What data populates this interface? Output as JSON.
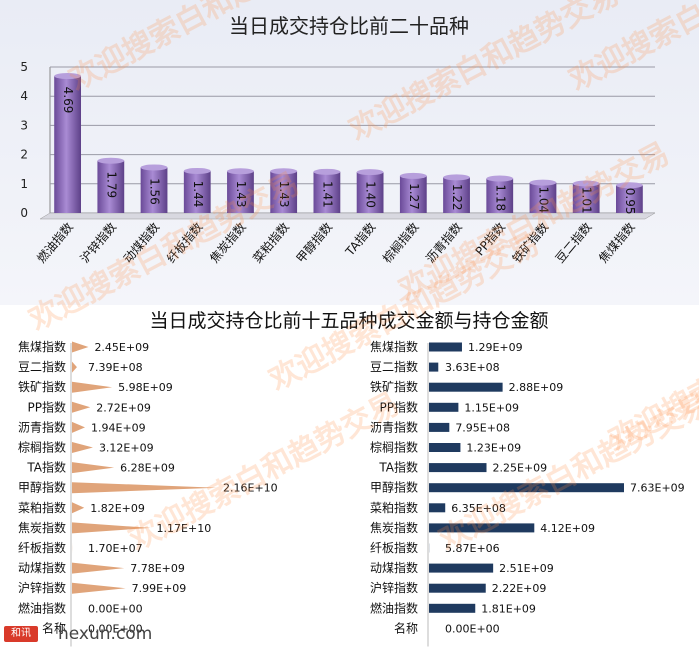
{
  "chart_data": [
    {
      "type": "bar",
      "title": "当日成交持仓比前二十品种",
      "categories": [
        "燃油指数",
        "沪锌指数",
        "动煤指数",
        "纤板指数",
        "焦炭指数",
        "菜粕指数",
        "甲醇指数",
        "TA指数",
        "棕榈指数",
        "沥青指数",
        "PP指数",
        "铁矿指数",
        "豆二指数",
        "焦煤指数"
      ],
      "values": [
        4.69,
        1.79,
        1.56,
        1.44,
        1.43,
        1.43,
        1.41,
        1.4,
        1.27,
        1.22,
        1.18,
        1.04,
        1.01,
        0.95
      ],
      "value_labels": [
        "4.69",
        "1.79",
        "1.56",
        "1.44",
        "1.43",
        "1.43",
        "1.41",
        "1.40",
        "1.27",
        "1.22",
        "1.18",
        "1.04",
        "1.01",
        "0.95"
      ],
      "yticks": [
        "0",
        "1",
        "2",
        "3",
        "4",
        "5"
      ],
      "ylim": [
        0,
        5
      ],
      "grid": true,
      "bar_color": "#8a68b8"
    },
    {
      "type": "bar",
      "title": "当日成交持仓比前十五品种成交金额与持仓金额",
      "orientation": "horizontal",
      "panels": [
        {
          "categories": [
            "焦煤指数",
            "豆二指数",
            "铁矿指数",
            "PP指数",
            "沥青指数",
            "棕榈指数",
            "TA指数",
            "甲醇指数",
            "菜粕指数",
            "焦炭指数",
            "纤板指数",
            "动煤指数",
            "沪锌指数",
            "燃油指数",
            "名称"
          ],
          "values": [
            2450000000.0,
            739000000.0,
            5980000000.0,
            2720000000.0,
            1940000000.0,
            3120000000.0,
            6280000000.0,
            21600000000.0,
            1820000000.0,
            11700000000.0,
            17000000.0,
            7780000000.0,
            7990000000.0,
            0,
            0
          ],
          "value_labels": [
            "2.45E+09",
            "7.39E+08",
            "5.98E+09",
            "2.72E+09",
            "1.94E+09",
            "3.12E+09",
            "6.28E+09",
            "2.16E+10",
            "1.82E+09",
            "1.17E+10",
            "1.70E+07",
            "7.78E+09",
            "7.99E+09",
            "0.00E+00",
            "0.00E+00"
          ],
          "bar_color": "#e0a47a"
        },
        {
          "categories": [
            "焦煤指数",
            "豆二指数",
            "铁矿指数",
            "PP指数",
            "沥青指数",
            "棕榈指数",
            "TA指数",
            "甲醇指数",
            "菜粕指数",
            "焦炭指数",
            "纤板指数",
            "动煤指数",
            "沪锌指数",
            "燃油指数",
            "名称"
          ],
          "values": [
            1290000000.0,
            363000000.0,
            2880000000.0,
            1150000000.0,
            795000000.0,
            1230000000.0,
            2250000000.0,
            7630000000.0,
            635000000.0,
            4120000000.0,
            5870000.0,
            2510000000.0,
            2220000000.0,
            1810000000.0,
            0
          ],
          "value_labels": [
            "1.29E+09",
            "3.63E+08",
            "2.88E+09",
            "1.15E+09",
            "7.95E+08",
            "1.23E+09",
            "2.25E+09",
            "7.63E+09",
            "6.35E+08",
            "4.12E+09",
            "5.87E+06",
            "2.51E+09",
            "2.22E+09",
            "1.81E+09",
            "0.00E+00"
          ],
          "bar_color": "#1f3a5f"
        }
      ]
    }
  ],
  "watermark": "欢迎搜索白和趋势交易",
  "logo": {
    "badge": "和讯",
    "site": "hexun.com"
  }
}
